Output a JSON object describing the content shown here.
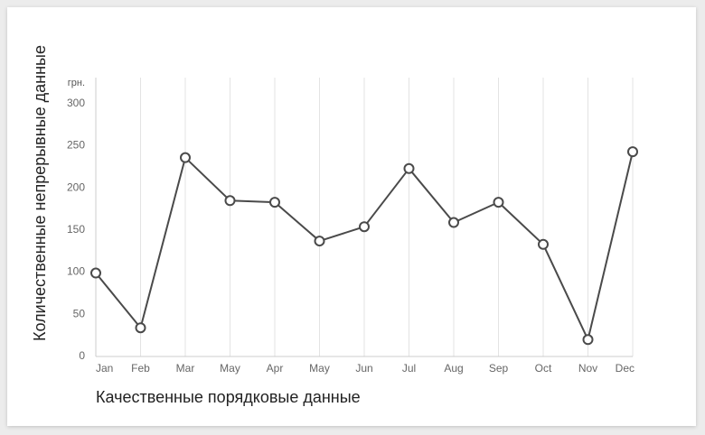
{
  "chart_data": {
    "type": "line",
    "unit_label": "грн.",
    "xlabel": "Качественные порядковые данные",
    "ylabel": "Количественные непрерывные данные",
    "categories": [
      "Jan",
      "Feb",
      "Mar",
      "May",
      "Apr",
      "May",
      "Jun",
      "Jul",
      "Aug",
      "Sep",
      "Oct",
      "Nov",
      "Dec"
    ],
    "values": [
      98,
      33,
      235,
      184,
      182,
      136,
      153,
      222,
      158,
      182,
      132,
      19,
      242
    ],
    "ylim": [
      0,
      300
    ],
    "yticks": [
      0,
      50,
      100,
      150,
      200,
      250,
      300
    ],
    "grid": "vertical",
    "colors": {
      "line": "#4a4a4a",
      "marker_fill": "#ffffff",
      "grid": "#e3e3e3",
      "axis": "#cccccc"
    }
  }
}
